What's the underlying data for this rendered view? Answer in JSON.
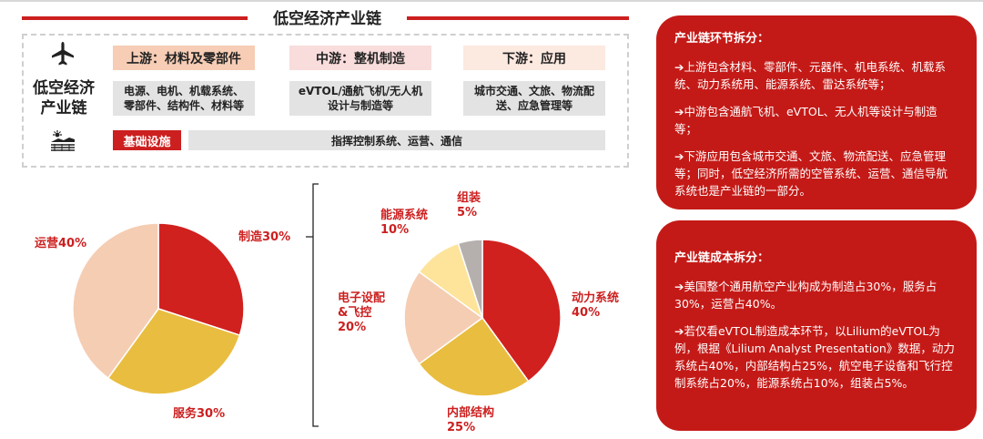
{
  "chain": {
    "title": "低空经济产业链",
    "label_line1": "低空经济",
    "label_line2": "产业链",
    "stages": [
      {
        "head": "上游：材料及零部件",
        "desc_line1": "电源、电机、机载系统、",
        "desc_line2": "零部件、结构件、材料等"
      },
      {
        "head": "中游：整机制造",
        "desc_line1": "eVTOL/通航飞机/无人机",
        "desc_line2": "设计与制造等"
      },
      {
        "head": "下游：应用",
        "desc_line1": "城市交通、文旅、物流配",
        "desc_line2": "送、应急管理等"
      }
    ],
    "infra_label": "基础设施",
    "infra_desc": "指挥控制系统、运营、通信",
    "icons": [
      "airplane-icon",
      "infrastructure-icon"
    ]
  },
  "chart_data": [
    {
      "type": "pie",
      "categories": [
        "制造",
        "服务",
        "运营"
      ],
      "values": [
        30,
        30,
        40
      ],
      "labels": [
        "制造30%",
        "服务30%",
        "运营40%"
      ],
      "colors": [
        "#d0211f",
        "#e9bd3f",
        "#f5cdb3"
      ]
    },
    {
      "type": "pie",
      "categories": [
        "动力系统",
        "内部结构",
        "电子设配&飞控",
        "能源系统",
        "组装"
      ],
      "values": [
        40,
        25,
        20,
        10,
        5
      ],
      "labels": [
        [
          "动力系统",
          "40%"
        ],
        [
          "内部结构",
          "25%"
        ],
        [
          "电子设配",
          "&飞控",
          "20%"
        ],
        [
          "能源系统",
          "10%"
        ],
        [
          "组装",
          "5%"
        ]
      ],
      "colors": [
        "#d0211f",
        "#e9bd3f",
        "#f5cdb3",
        "#fde49a",
        "#b5b0ae"
      ]
    }
  ],
  "panels": {
    "chain_title": "产业链环节拆分：",
    "chain_paras": [
      "➔上游包含材料、零部件、元器件、机电系统、机载系统、动力系统用、能源系统、雷达系统等；",
      "➔中游包含通航飞机、eVTOL、无人机等设计与制造等；",
      "➔下游应用包含城市交通、文旅、物流配送、应急管理等；同时，低空经济所需的空管系统、运营、通信导航系统也是产业链的一部分。"
    ],
    "cost_title": "产业链成本拆分：",
    "cost_paras": [
      "➔美国整个通用航空产业构成为制造占30%，服务占30%，运营占40%。",
      "➔若仅看eVTOL制造成本环节，以Lilium的eVTOL为例，根据《Lilium Analyst Presentation》数据，动力系统占40%，内部结构占25%，航空电子设备和飞行控制系统占20%，能源系统占10%，组装占5%。"
    ]
  }
}
